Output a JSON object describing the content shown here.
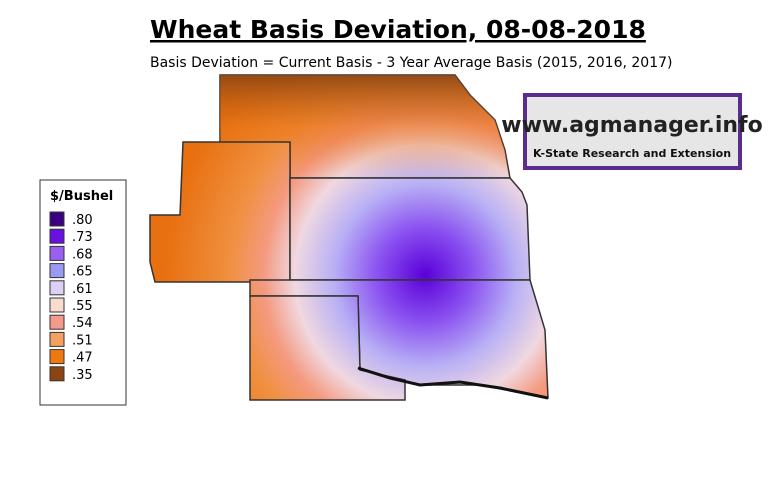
{
  "header": {
    "title": "Wheat Basis Deviation, 08-08-2018",
    "subtitle": "Basis Deviation = Current Basis - 3 Year Average Basis (2015, 2016, 2017)"
  },
  "logo": {
    "url": "www.agmanager.info",
    "org": "K-State Research and Extension"
  },
  "legend": {
    "title": "$/Bushel",
    "items": [
      {
        "value": 0.8,
        "label": ".80",
        "color": "#3a0080"
      },
      {
        "value": 0.73,
        "label": ".73",
        "color": "#6a10e0"
      },
      {
        "value": 0.68,
        "label": ".68",
        "color": "#9a5ef0"
      },
      {
        "value": 0.65,
        "label": ".65",
        "color": "#9a9af5"
      },
      {
        "value": 0.61,
        "label": ".61",
        "color": "#dcd0f5"
      },
      {
        "value": 0.55,
        "label": ".55",
        "color": "#f8dcd0"
      },
      {
        "value": 0.54,
        "label": ".54",
        "color": "#f49a8a"
      },
      {
        "value": 0.51,
        "label": ".51",
        "color": "#f4a060"
      },
      {
        "value": 0.47,
        "label": ".47",
        "color": "#f07810"
      },
      {
        "value": 0.35,
        "label": ".35",
        "color": "#8b4513"
      }
    ]
  }
}
